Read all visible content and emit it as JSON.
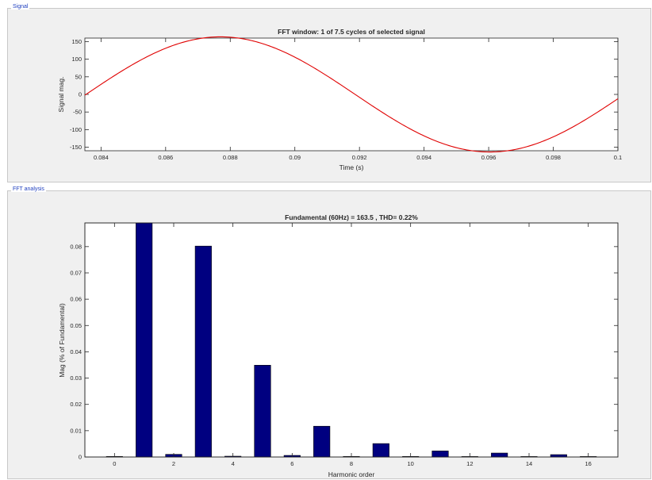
{
  "panels": {
    "signal": "Signal",
    "fft": "FFT analysis"
  },
  "colors": {
    "signal_line": "#e00000",
    "bar_fill": "#000080",
    "bar_edge": "#000000",
    "axes_bg": "#ffffff",
    "axis_color": "#262626"
  },
  "chart_data": [
    {
      "type": "line",
      "title": "FFT window: 1 of 7.5 cycles of selected signal",
      "xlabel": "Time (s)",
      "ylabel": "Signal mag.",
      "xlim": [
        0.0835,
        0.1
      ],
      "ylim": [
        -160,
        160
      ],
      "xticks": [
        0.084,
        0.086,
        0.088,
        0.09,
        0.092,
        0.094,
        0.096,
        0.098,
        0.1
      ],
      "xtick_labels": [
        "0.084",
        "0.086",
        "0.088",
        "0.09",
        "0.092",
        "0.094",
        "0.096",
        "0.098",
        "0.1"
      ],
      "yticks": [
        150,
        100,
        50,
        0,
        -50,
        -100,
        -150
      ],
      "ytick_labels": [
        "150",
        "100",
        "50",
        "0",
        "-50",
        "-100",
        "-150"
      ],
      "series": [
        {
          "amplitude": 163.5,
          "frequency_hz": 60,
          "x": [
            0.0835,
            0.0842,
            0.0849,
            0.0856,
            0.0863,
            0.087,
            0.0877,
            0.0884,
            0.0891,
            0.0898,
            0.0905,
            0.0912,
            0.0919,
            0.0926,
            0.0933,
            0.094,
            0.0947,
            0.0954,
            0.0961,
            0.0968,
            0.0975,
            0.0982,
            0.0989,
            0.0996,
            0.1
          ],
          "y": [
            0,
            42,
            81,
            115,
            141,
            158,
            163.5,
            158,
            141,
            115,
            81,
            42,
            0,
            -42,
            -81,
            -115,
            -141,
            -158,
            -163.5,
            -158,
            -141,
            -115,
            -81,
            -42,
            0
          ]
        }
      ],
      "grid": false
    },
    {
      "type": "bar",
      "title": "Fundamental (60Hz) = 163.5 , THD= 0.22%",
      "xlabel": "Harmonic order",
      "ylabel": "Mag (% of Fundamental)",
      "xlim": [
        -1,
        17
      ],
      "ylim": [
        0,
        0.089
      ],
      "xticks": [
        0,
        2,
        4,
        6,
        8,
        10,
        12,
        14,
        16
      ],
      "xtick_labels": [
        "0",
        "2",
        "4",
        "6",
        "8",
        "10",
        "12",
        "14",
        "16"
      ],
      "yticks": [
        0,
        0.01,
        0.02,
        0.03,
        0.04,
        0.05,
        0.06,
        0.07,
        0.08
      ],
      "ytick_labels": [
        "0",
        "0.01",
        "0.02",
        "0.03",
        "0.04",
        "0.05",
        "0.06",
        "0.07",
        "0.08"
      ],
      "categories": [
        0,
        1,
        2,
        3,
        4,
        5,
        6,
        7,
        8,
        9,
        10,
        11,
        12,
        13,
        14,
        15,
        16
      ],
      "values": [
        0.0002,
        0.089,
        0.001,
        0.0802,
        0.0003,
        0.0349,
        0.0006,
        0.0117,
        0.0002,
        0.0051,
        0.0002,
        0.0023,
        0.0001,
        0.0015,
        0.0001,
        0.0009,
        0.0001
      ],
      "grid": false
    }
  ]
}
